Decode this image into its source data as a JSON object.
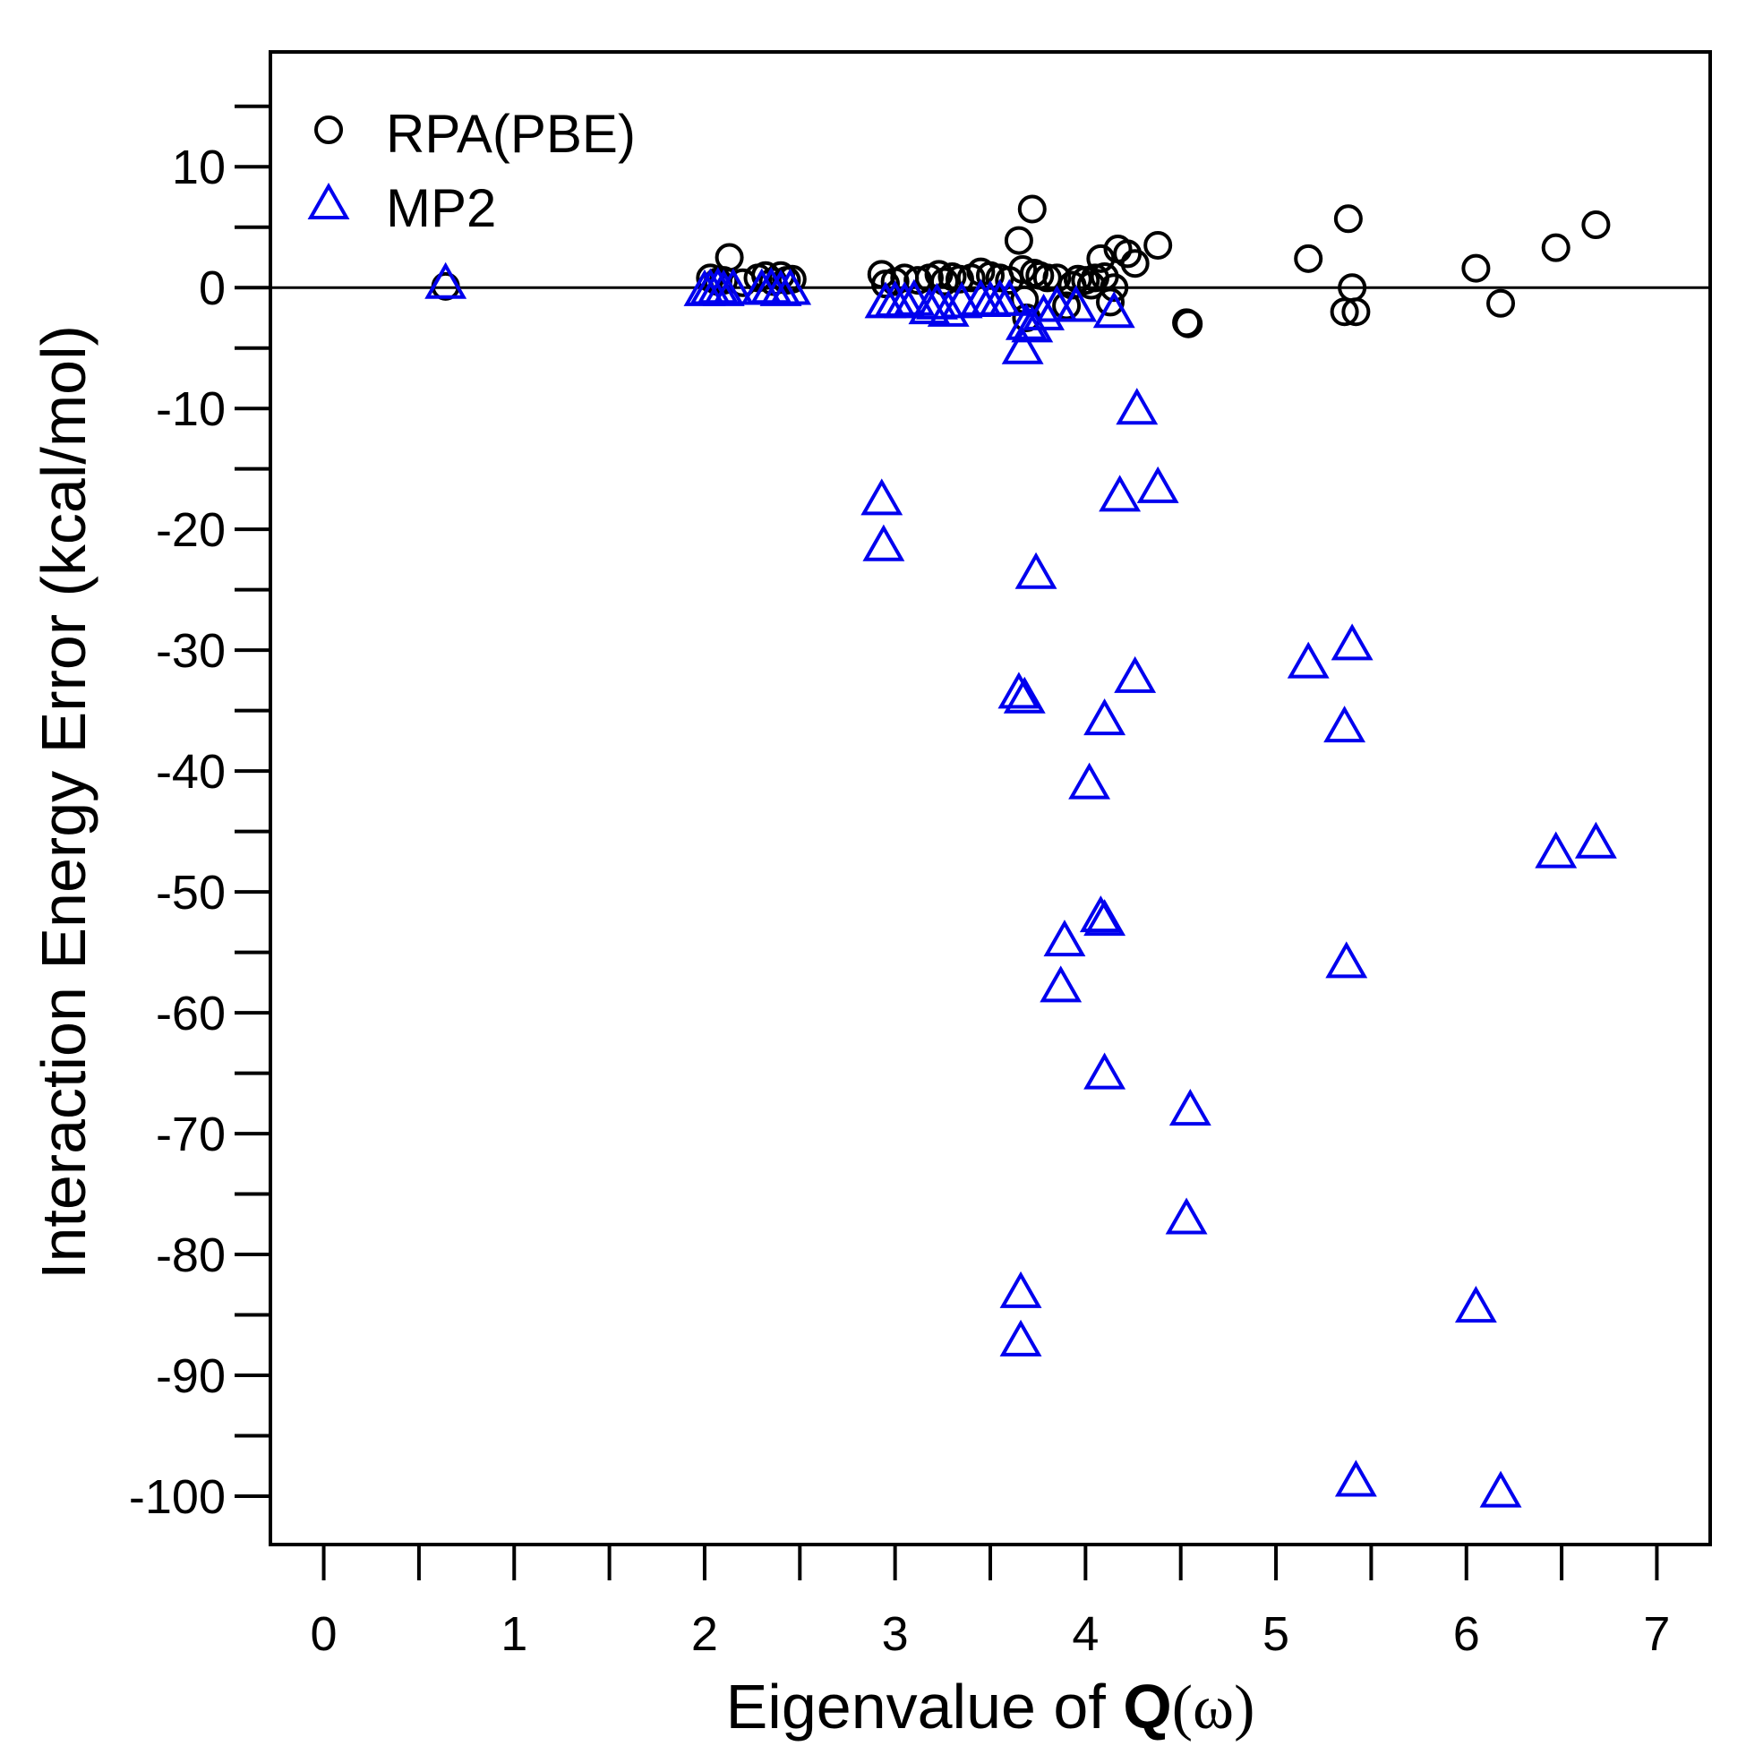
{
  "chart_data": {
    "type": "scatter",
    "title": "",
    "xlabel": {
      "prefix": "Eigenvalue of ",
      "bold": "Q",
      "suffix": "(ω)"
    },
    "ylabel": "Interaction Energy Error (kcal/mol)",
    "xlim": [
      -0.28,
      7.28
    ],
    "ylim": [
      -104,
      19.5
    ],
    "x_ticks": [
      0,
      1,
      2,
      3,
      4,
      5,
      6,
      7
    ],
    "x_minor_ticks": [
      0.5,
      1.5,
      2.5,
      3.5,
      4.5,
      5.5,
      6.5
    ],
    "y_ticks": [
      10,
      0,
      -10,
      -20,
      -30,
      -40,
      -50,
      -60,
      -70,
      -80,
      -90,
      -100
    ],
    "y_minor_ticks": [
      15,
      5,
      -5,
      -15,
      -25,
      -35,
      -45,
      -55,
      -65,
      -75,
      -85,
      -95
    ],
    "y_tick_labels": [
      "10",
      "0",
      "-10",
      "-20",
      "-30",
      "-40",
      "-50",
      "-60",
      "-70",
      "-80",
      "-90",
      "-100"
    ],
    "x_tick_labels": [
      "0",
      "1",
      "2",
      "3",
      "4",
      "5",
      "6",
      "7"
    ],
    "reference_line_y": 0,
    "legend_position": "top-left",
    "series": [
      {
        "name": "RPA(PBE)",
        "marker": "circle",
        "color": "#000000",
        "points": [
          [
            0.64,
            0.1
          ],
          [
            2.03,
            0.8
          ],
          [
            2.07,
            0.5
          ],
          [
            2.1,
            0.6
          ],
          [
            2.13,
            2.5
          ],
          [
            2.2,
            0.4
          ],
          [
            2.28,
            0.8
          ],
          [
            2.32,
            1.0
          ],
          [
            2.36,
            0.5
          ],
          [
            2.4,
            1.0
          ],
          [
            2.43,
            0.6
          ],
          [
            2.46,
            0.7
          ],
          [
            2.93,
            1.1
          ],
          [
            2.95,
            0.3
          ],
          [
            3.0,
            0.5
          ],
          [
            3.05,
            0.8
          ],
          [
            3.12,
            0.6
          ],
          [
            3.18,
            0.8
          ],
          [
            3.23,
            1.1
          ],
          [
            3.26,
            0.5
          ],
          [
            3.3,
            0.9
          ],
          [
            3.34,
            0.7
          ],
          [
            3.4,
            0.8
          ],
          [
            3.45,
            1.3
          ],
          [
            3.5,
            1.0
          ],
          [
            3.55,
            0.8
          ],
          [
            3.6,
            0.6
          ],
          [
            3.65,
            3.9
          ],
          [
            3.67,
            1.5
          ],
          [
            3.68,
            -1.0
          ],
          [
            3.69,
            -2.5
          ],
          [
            3.72,
            6.5
          ],
          [
            3.73,
            1.2
          ],
          [
            3.76,
            1.0
          ],
          [
            3.8,
            0.8
          ],
          [
            3.85,
            0.8
          ],
          [
            3.9,
            -1.5
          ],
          [
            3.93,
            0.2
          ],
          [
            3.96,
            0.7
          ],
          [
            4.0,
            0.6
          ],
          [
            4.03,
            0.2
          ],
          [
            4.05,
            0.8
          ],
          [
            4.08,
            2.4
          ],
          [
            4.1,
            0.9
          ],
          [
            4.13,
            -1.2
          ],
          [
            4.15,
            0.0
          ],
          [
            4.17,
            3.2
          ],
          [
            4.22,
            2.8
          ],
          [
            4.26,
            2.0
          ],
          [
            4.38,
            3.5
          ],
          [
            4.53,
            -2.9
          ],
          [
            4.54,
            -3.0
          ],
          [
            5.17,
            2.4
          ],
          [
            5.36,
            -2.0
          ],
          [
            5.38,
            5.7
          ],
          [
            5.4,
            0.0
          ],
          [
            5.42,
            -2.0
          ],
          [
            6.05,
            1.6
          ],
          [
            6.18,
            -1.3
          ],
          [
            6.47,
            3.3
          ],
          [
            6.68,
            5.2
          ]
        ]
      },
      {
        "name": "MP2",
        "marker": "triangle",
        "color": "#0000ee",
        "points": [
          [
            0.64,
            0.4
          ],
          [
            2.0,
            -0.2
          ],
          [
            2.03,
            -0.1
          ],
          [
            2.07,
            0.0
          ],
          [
            2.1,
            -0.2
          ],
          [
            2.15,
            -0.1
          ],
          [
            2.3,
            -0.1
          ],
          [
            2.35,
            0.0
          ],
          [
            2.4,
            -0.2
          ],
          [
            2.45,
            -0.1
          ],
          [
            2.93,
            -17.5
          ],
          [
            2.94,
            -21.3
          ],
          [
            2.95,
            -1.2
          ],
          [
            3.0,
            -1.1
          ],
          [
            3.05,
            -1.2
          ],
          [
            3.1,
            -1.0
          ],
          [
            3.18,
            -1.7
          ],
          [
            3.22,
            -1.3
          ],
          [
            3.28,
            -1.9
          ],
          [
            3.35,
            -1.2
          ],
          [
            3.45,
            -1.0
          ],
          [
            3.5,
            -1.1
          ],
          [
            3.55,
            -1.0
          ],
          [
            3.6,
            -1.0
          ],
          [
            3.65,
            -33.5
          ],
          [
            3.66,
            -83.1
          ],
          [
            3.66,
            -87.1
          ],
          [
            3.67,
            -5.0
          ],
          [
            3.68,
            -33.9
          ],
          [
            3.69,
            -3.0
          ],
          [
            3.72,
            -3.2
          ],
          [
            3.74,
            -23.6
          ],
          [
            3.78,
            -2.2
          ],
          [
            3.85,
            -1.5
          ],
          [
            3.87,
            -57.8
          ],
          [
            3.89,
            -54.0
          ],
          [
            3.95,
            -1.5
          ],
          [
            4.02,
            -41.0
          ],
          [
            4.08,
            -52.0
          ],
          [
            4.1,
            -52.3
          ],
          [
            4.1,
            -35.7
          ],
          [
            4.1,
            -65.0
          ],
          [
            4.15,
            -2.0
          ],
          [
            4.18,
            -17.2
          ],
          [
            4.26,
            -32.2
          ],
          [
            4.27,
            -10.0
          ],
          [
            4.38,
            -16.5
          ],
          [
            4.53,
            -77.0
          ],
          [
            4.55,
            -68.0
          ],
          [
            5.17,
            -31.0
          ],
          [
            5.36,
            -36.3
          ],
          [
            5.37,
            -55.8
          ],
          [
            5.4,
            -29.5
          ],
          [
            5.42,
            -98.7
          ],
          [
            6.05,
            -84.3
          ],
          [
            6.18,
            -99.6
          ],
          [
            6.47,
            -46.7
          ],
          [
            6.68,
            -45.9
          ]
        ]
      }
    ]
  }
}
